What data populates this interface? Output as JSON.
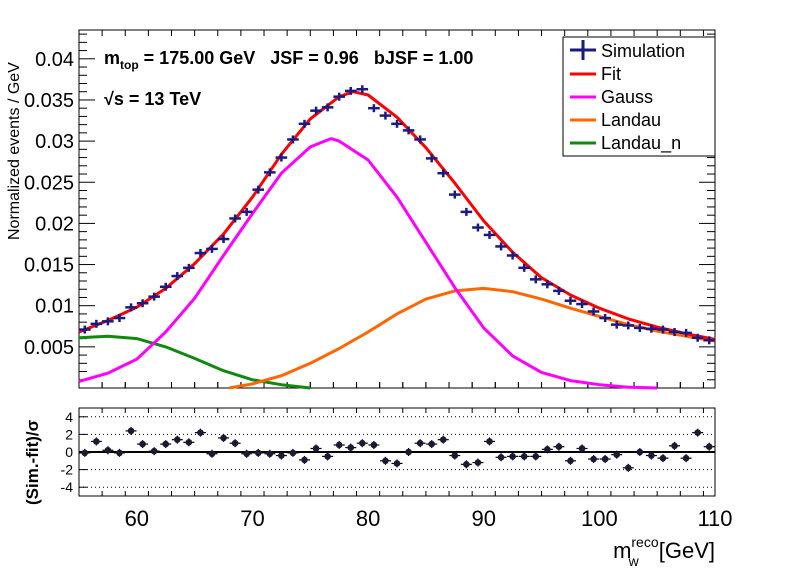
{
  "chart_data": [
    {
      "type": "line",
      "ylabel": "Normalized events / GeV",
      "xlim": [
        55,
        110
      ],
      "ylim": [
        0,
        0.0435
      ],
      "y_ticks": [
        0.005,
        0.01,
        0.015,
        0.02,
        0.025,
        0.03,
        0.035,
        0.04
      ],
      "y_tick_labels": [
        "0.005",
        "0.01",
        "0.015",
        "0.02",
        "0.025",
        "0.03",
        "0.035",
        "0.04"
      ],
      "annotations": {
        "mtop_label": "m",
        "mtop_sub": "top",
        "mtop_value": " = 175.00 GeV   JSF = 0.96   bJSF = 1.00",
        "sqrt_symbol": "√",
        "energy_value": "s = 13 TeV"
      },
      "legend": {
        "placement": "top-right",
        "entries": [
          "Simulation",
          "Fit",
          "Gauss",
          "Landau",
          "Landau_n"
        ]
      },
      "colors": {
        "simulation": "#1a1a80",
        "fit": "#ff0000",
        "gauss": "#ff00ff",
        "landau": "#ff6600",
        "landau_n": "#118811"
      },
      "simulation": {
        "x": [
          55.5,
          56.5,
          57.5,
          58.5,
          59.5,
          60.5,
          61.5,
          62.5,
          63.5,
          64.5,
          65.5,
          66.5,
          67.5,
          68.5,
          69.5,
          70.5,
          71.5,
          72.5,
          73.5,
          74.5,
          75.5,
          76.5,
          77.5,
          78.5,
          79.5,
          80.5,
          81.5,
          82.5,
          83.5,
          84.5,
          85.5,
          86.5,
          87.5,
          88.5,
          89.5,
          90.5,
          91.5,
          92.5,
          93.5,
          94.5,
          95.5,
          96.5,
          97.5,
          98.5,
          99.5,
          100.5,
          101.5,
          102.5,
          103.5,
          104.5,
          105.5,
          106.5,
          107.5,
          108.5,
          109.5
        ],
        "y": [
          0.0071,
          0.0078,
          0.0081,
          0.0085,
          0.0098,
          0.0103,
          0.0111,
          0.0123,
          0.0136,
          0.0146,
          0.0164,
          0.0169,
          0.0181,
          0.0206,
          0.0214,
          0.0241,
          0.0262,
          0.028,
          0.0302,
          0.0321,
          0.0337,
          0.0341,
          0.0354,
          0.0361,
          0.0363,
          0.034,
          0.0331,
          0.0321,
          0.0313,
          0.0302,
          0.0279,
          0.0261,
          0.0235,
          0.0214,
          0.0195,
          0.0186,
          0.0172,
          0.0161,
          0.0146,
          0.0132,
          0.0126,
          0.0118,
          0.0106,
          0.0102,
          0.0093,
          0.0085,
          0.0077,
          0.0076,
          0.0073,
          0.0072,
          0.0071,
          0.0068,
          0.0067,
          0.0061,
          0.0058
        ]
      },
      "fit": {
        "x": [
          55,
          57.5,
          60,
          62.5,
          65,
          67.5,
          70,
          72.5,
          75,
          77.5,
          78.7,
          80,
          82.5,
          85,
          87.5,
          90,
          92.5,
          95,
          97.5,
          100,
          102.5,
          105,
          107.5,
          110
        ],
        "y": [
          0.0068,
          0.0082,
          0.0098,
          0.0121,
          0.0151,
          0.0187,
          0.0232,
          0.0284,
          0.0327,
          0.0354,
          0.036,
          0.0356,
          0.0329,
          0.0292,
          0.0249,
          0.0203,
          0.0165,
          0.0134,
          0.0113,
          0.0097,
          0.0084,
          0.0074,
          0.0066,
          0.0059
        ]
      },
      "gauss": {
        "x": [
          55,
          57.5,
          60,
          62.5,
          65,
          67.5,
          70,
          72.5,
          75,
          76.8,
          77.5,
          80,
          82.5,
          85,
          87.5,
          90,
          92.5,
          95,
          97.5,
          100,
          102.5,
          105
        ],
        "y": [
          0.0008,
          0.0018,
          0.0035,
          0.0068,
          0.0109,
          0.0161,
          0.0212,
          0.0261,
          0.0293,
          0.0303,
          0.03,
          0.0277,
          0.0232,
          0.0177,
          0.0122,
          0.0073,
          0.0039,
          0.0019,
          0.0009,
          0.0004,
          0.0001,
          0.0
        ]
      },
      "landau": {
        "x": [
          68,
          70,
          72.5,
          75,
          77.5,
          80,
          82.5,
          85,
          87.5,
          90,
          92.5,
          95,
          97.5,
          100,
          102.5,
          105,
          107.5,
          110
        ],
        "y": [
          0.0,
          0.0005,
          0.0015,
          0.003,
          0.0048,
          0.0068,
          0.009,
          0.0108,
          0.0118,
          0.0121,
          0.0117,
          0.0108,
          0.0097,
          0.0087,
          0.0077,
          0.0069,
          0.0063,
          0.0057
        ]
      },
      "landau_n": {
        "x": [
          55,
          57.5,
          60,
          62.5,
          65,
          67.5,
          70,
          72.5,
          75
        ],
        "y": [
          0.0061,
          0.0063,
          0.006,
          0.005,
          0.0036,
          0.0021,
          0.001,
          0.0004,
          0.0
        ]
      }
    },
    {
      "type": "scatter",
      "xlabel_main": "m",
      "xlabel_sub": "w",
      "xlabel_sup": "reco",
      "xlabel_unit": "[GeV]",
      "ylabel": "(Sim.-fit)/σ",
      "xlim": [
        55,
        110
      ],
      "ylim": [
        -5,
        5
      ],
      "x_ticks": [
        60,
        70,
        80,
        90,
        100,
        110
      ],
      "x_tick_labels": [
        "60",
        "70",
        "80",
        "90",
        "100",
        "110"
      ],
      "y_ticks": [
        -4,
        -2,
        0,
        2,
        4
      ],
      "y_tick_labels": [
        "-4",
        "-2",
        "0",
        "2",
        "4"
      ],
      "grid": "dotted horizontal at ±2, ±4",
      "x": [
        55.5,
        56.5,
        57.5,
        58.5,
        59.5,
        60.5,
        61.5,
        62.5,
        63.5,
        64.5,
        65.5,
        66.5,
        67.5,
        68.5,
        69.5,
        70.5,
        71.5,
        72.5,
        73.5,
        74.5,
        75.5,
        76.5,
        77.5,
        78.5,
        79.5,
        80.5,
        81.5,
        82.5,
        83.5,
        84.5,
        85.5,
        86.5,
        87.5,
        88.5,
        89.5,
        90.5,
        91.5,
        92.5,
        93.5,
        94.5,
        95.5,
        96.5,
        97.5,
        98.5,
        99.5,
        100.5,
        101.5,
        102.5,
        103.5,
        104.5,
        105.5,
        106.5,
        107.5,
        108.5,
        109.5
      ],
      "y": [
        -0.1,
        1.2,
        0.2,
        -0.1,
        2.4,
        0.9,
        0.1,
        0.9,
        1.4,
        1.1,
        2.2,
        -0.2,
        1.6,
        1.0,
        -0.2,
        -0.1,
        -0.2,
        -0.4,
        -0.1,
        -0.9,
        0.4,
        -0.5,
        0.8,
        0.5,
        1.0,
        0.8,
        -1.0,
        -1.3,
        0.0,
        1.0,
        0.9,
        1.4,
        -0.4,
        -1.4,
        -1.2,
        1.2,
        -0.6,
        -0.5,
        -0.5,
        -0.5,
        0.3,
        0.6,
        -1.0,
        0.4,
        -0.8,
        -0.8,
        -0.3,
        -1.8,
        0.0,
        -0.4,
        -0.7,
        0.7,
        -0.7,
        2.2,
        0.6
      ]
    }
  ]
}
